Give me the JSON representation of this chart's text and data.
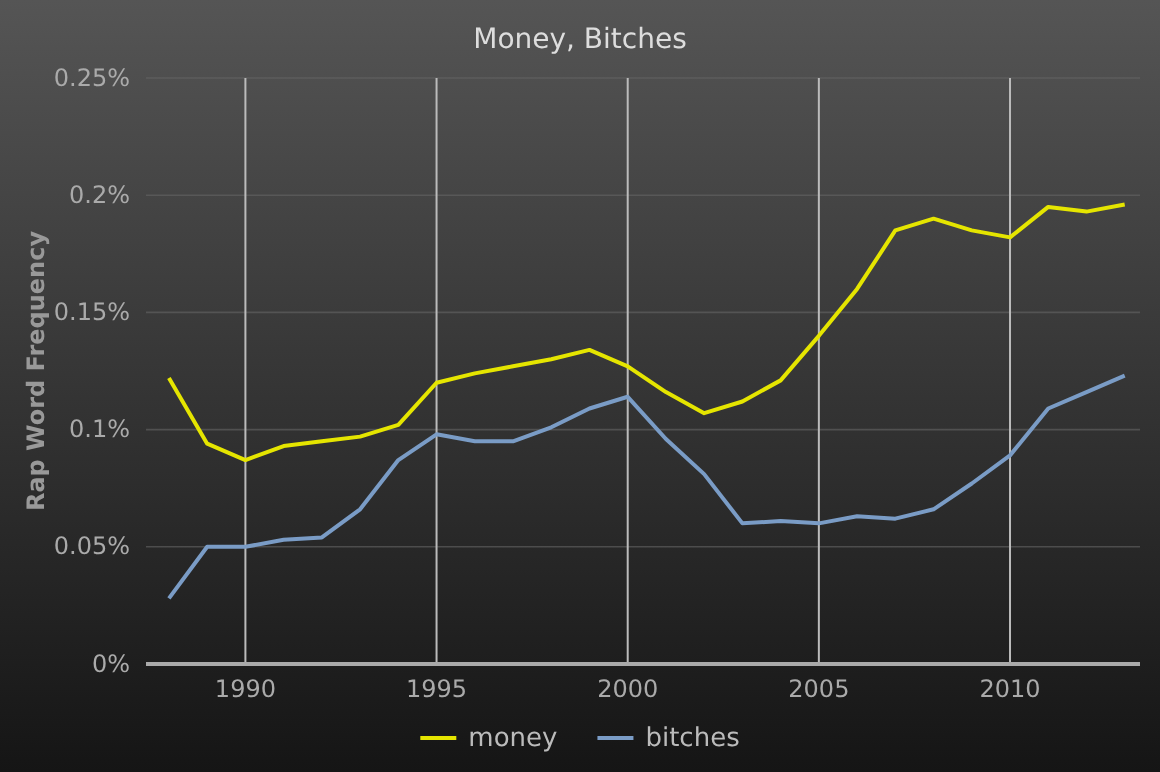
{
  "chart_data": {
    "type": "line",
    "title": "Money, Bitches",
    "ylabel": "Rap Word Frequency",
    "x": [
      1988,
      1989,
      1990,
      1991,
      1992,
      1993,
      1994,
      1995,
      1996,
      1997,
      1998,
      1999,
      2000,
      2001,
      2002,
      2003,
      2004,
      2005,
      2006,
      2007,
      2008,
      2009,
      2010,
      2011,
      2012,
      2013
    ],
    "series": [
      {
        "name": "money",
        "color": "#e5e500",
        "values": [
          0.122,
          0.094,
          0.087,
          0.093,
          0.095,
          0.097,
          0.102,
          0.12,
          0.124,
          0.127,
          0.13,
          0.134,
          0.127,
          0.116,
          0.107,
          0.112,
          0.121,
          0.14,
          0.16,
          0.185,
          0.19,
          0.185,
          0.182,
          0.195,
          0.193,
          0.196
        ]
      },
      {
        "name": "bitches",
        "color": "#7a9cc6",
        "values": [
          0.028,
          0.05,
          0.05,
          0.053,
          0.054,
          0.066,
          0.087,
          0.098,
          0.095,
          0.095,
          0.101,
          0.109,
          0.114,
          0.096,
          0.081,
          0.06,
          0.061,
          0.06,
          0.063,
          0.062,
          0.066,
          0.077,
          0.089,
          0.109,
          0.116,
          0.123
        ]
      }
    ],
    "xlim": [
      1987.4,
      2013.4
    ],
    "xticks": [
      1990,
      1995,
      2000,
      2005,
      2010
    ],
    "ylim": [
      0,
      0.25
    ],
    "yticks": [
      {
        "value": 0,
        "label": "0%"
      },
      {
        "value": 0.05,
        "label": "0.05%"
      },
      {
        "value": 0.1,
        "label": "0.1%"
      },
      {
        "value": 0.15,
        "label": "0.15%"
      },
      {
        "value": 0.2,
        "label": "0.2%"
      },
      {
        "value": 0.25,
        "label": "0.25%"
      }
    ],
    "grid": true,
    "legend": "bottom",
    "line_style": "solid",
    "marker": "none"
  }
}
